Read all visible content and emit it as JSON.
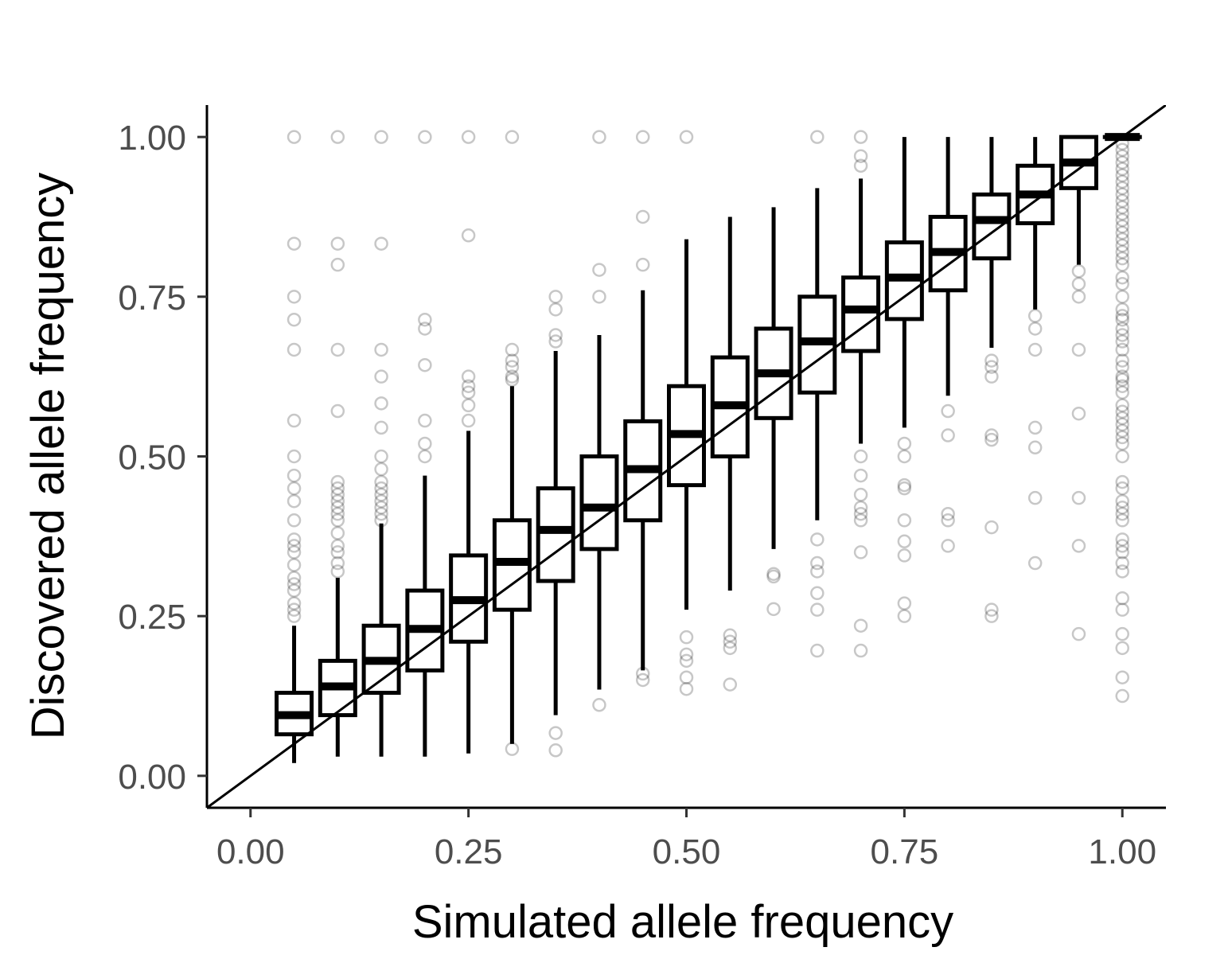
{
  "chart_data": {
    "type": "boxplot",
    "title": "",
    "xlabel": "Simulated allele frequency",
    "ylabel": "Discovered allele frequency",
    "xlim": [
      -0.05,
      1.05
    ],
    "ylim": [
      -0.05,
      1.05
    ],
    "x_ticks": [
      {
        "value": 0.0,
        "label": "0.00"
      },
      {
        "value": 0.25,
        "label": "0.25"
      },
      {
        "value": 0.5,
        "label": "0.50"
      },
      {
        "value": 0.75,
        "label": "0.75"
      },
      {
        "value": 1.0,
        "label": "1.00"
      }
    ],
    "y_ticks": [
      {
        "value": 0.0,
        "label": "0.00"
      },
      {
        "value": 0.25,
        "label": "0.25"
      },
      {
        "value": 0.5,
        "label": "0.50"
      },
      {
        "value": 0.75,
        "label": "0.75"
      },
      {
        "value": 1.0,
        "label": "1.00"
      }
    ],
    "grid": false,
    "legend": "none",
    "reference_line": {
      "slope": 1,
      "intercept": 0
    },
    "colors": {
      "box": "#000000",
      "outlier": "#000000",
      "reference_line": "#000000"
    },
    "boxes": [
      {
        "x": 0.05,
        "lower_whisker": 0.02,
        "q1": 0.065,
        "median": 0.095,
        "q3": 0.13,
        "upper_whisker": 0.235,
        "outliers": [
          0.25,
          0.26,
          0.27,
          0.29,
          0.3,
          0.31,
          0.33,
          0.35,
          0.36,
          0.37,
          0.4,
          0.43,
          0.45,
          0.47,
          0.5,
          0.556,
          0.667,
          0.714,
          0.75,
          0.833,
          1.0
        ]
      },
      {
        "x": 0.1,
        "lower_whisker": 0.03,
        "q1": 0.095,
        "median": 0.14,
        "q3": 0.18,
        "upper_whisker": 0.31,
        "outliers": [
          0.32,
          0.333,
          0.35,
          0.36,
          0.38,
          0.4,
          0.41,
          0.42,
          0.43,
          0.44,
          0.45,
          0.46,
          0.571,
          0.667,
          0.8,
          0.833,
          1.0
        ]
      },
      {
        "x": 0.15,
        "lower_whisker": 0.03,
        "q1": 0.13,
        "median": 0.18,
        "q3": 0.235,
        "upper_whisker": 0.395,
        "outliers": [
          0.4,
          0.41,
          0.42,
          0.43,
          0.44,
          0.45,
          0.46,
          0.48,
          0.5,
          0.545,
          0.583,
          0.625,
          0.667,
          0.833,
          1.0
        ]
      },
      {
        "x": 0.2,
        "lower_whisker": 0.03,
        "q1": 0.165,
        "median": 0.23,
        "q3": 0.29,
        "upper_whisker": 0.47,
        "outliers": [
          0.5,
          0.52,
          0.556,
          0.643,
          0.7,
          0.714,
          1.0
        ]
      },
      {
        "x": 0.25,
        "lower_whisker": 0.035,
        "q1": 0.21,
        "median": 0.275,
        "q3": 0.345,
        "upper_whisker": 0.54,
        "outliers": [
          0.556,
          0.58,
          0.6,
          0.61,
          0.625,
          0.846,
          1.0
        ]
      },
      {
        "x": 0.3,
        "lower_whisker": 0.05,
        "q1": 0.26,
        "median": 0.335,
        "q3": 0.4,
        "upper_whisker": 0.61,
        "outliers": [
          0.042,
          0.62,
          0.625,
          0.64,
          0.65,
          0.667,
          1.0
        ]
      },
      {
        "x": 0.35,
        "lower_whisker": 0.095,
        "q1": 0.305,
        "median": 0.385,
        "q3": 0.45,
        "upper_whisker": 0.665,
        "outliers": [
          0.04,
          0.067,
          0.68,
          0.69,
          0.73,
          0.75
        ]
      },
      {
        "x": 0.4,
        "lower_whisker": 0.135,
        "q1": 0.355,
        "median": 0.42,
        "q3": 0.5,
        "upper_whisker": 0.69,
        "outliers": [
          0.111,
          0.75,
          0.792,
          1.0
        ]
      },
      {
        "x": 0.45,
        "lower_whisker": 0.165,
        "q1": 0.4,
        "median": 0.48,
        "q3": 0.555,
        "upper_whisker": 0.76,
        "outliers": [
          0.15,
          0.16,
          0.8,
          0.875,
          1.0
        ]
      },
      {
        "x": 0.5,
        "lower_whisker": 0.26,
        "q1": 0.455,
        "median": 0.535,
        "q3": 0.61,
        "upper_whisker": 0.84,
        "outliers": [
          0.136,
          0.154,
          0.18,
          0.19,
          0.217,
          1.0
        ]
      },
      {
        "x": 0.55,
        "lower_whisker": 0.29,
        "q1": 0.5,
        "median": 0.58,
        "q3": 0.655,
        "upper_whisker": 0.875,
        "outliers": [
          0.143,
          0.2,
          0.21,
          0.22
        ]
      },
      {
        "x": 0.6,
        "lower_whisker": 0.355,
        "q1": 0.56,
        "median": 0.63,
        "q3": 0.7,
        "upper_whisker": 0.89,
        "outliers": [
          0.261,
          0.312,
          0.316
        ]
      },
      {
        "x": 0.65,
        "lower_whisker": 0.4,
        "q1": 0.6,
        "median": 0.68,
        "q3": 0.75,
        "upper_whisker": 0.92,
        "outliers": [
          0.196,
          0.26,
          0.286,
          0.32,
          0.333,
          0.37,
          1.0
        ]
      },
      {
        "x": 0.7,
        "lower_whisker": 0.52,
        "q1": 0.665,
        "median": 0.73,
        "q3": 0.78,
        "upper_whisker": 0.935,
        "outliers": [
          0.196,
          0.235,
          0.35,
          0.4,
          0.41,
          0.42,
          0.44,
          0.47,
          0.5,
          0.955,
          0.97,
          1.0
        ]
      },
      {
        "x": 0.75,
        "lower_whisker": 0.545,
        "q1": 0.715,
        "median": 0.78,
        "q3": 0.835,
        "upper_whisker": 1.0,
        "outliers": [
          0.25,
          0.27,
          0.345,
          0.367,
          0.4,
          0.45,
          0.455,
          0.5,
          0.52
        ]
      },
      {
        "x": 0.8,
        "lower_whisker": 0.595,
        "q1": 0.76,
        "median": 0.82,
        "q3": 0.875,
        "upper_whisker": 1.0,
        "outliers": [
          0.36,
          0.4,
          0.41,
          0.533,
          0.571
        ]
      },
      {
        "x": 0.85,
        "lower_whisker": 0.67,
        "q1": 0.81,
        "median": 0.87,
        "q3": 0.91,
        "upper_whisker": 1.0,
        "outliers": [
          0.25,
          0.26,
          0.389,
          0.526,
          0.533,
          0.625,
          0.64,
          0.65
        ]
      },
      {
        "x": 0.9,
        "lower_whisker": 0.73,
        "q1": 0.865,
        "median": 0.91,
        "q3": 0.955,
        "upper_whisker": 1.0,
        "outliers": [
          0.333,
          0.435,
          0.514,
          0.545,
          0.667,
          0.7,
          0.72
        ]
      },
      {
        "x": 0.95,
        "lower_whisker": 0.8,
        "q1": 0.92,
        "median": 0.96,
        "q3": 1.0,
        "upper_whisker": 1.0,
        "outliers": [
          0.222,
          0.36,
          0.435,
          0.567,
          0.667,
          0.75,
          0.77,
          0.79
        ]
      },
      {
        "x": 1.0,
        "lower_whisker": 1.0,
        "q1": 1.0,
        "median": 1.0,
        "q3": 1.0,
        "upper_whisker": 1.0,
        "outliers": [
          0.125,
          0.154,
          0.2,
          0.222,
          0.26,
          0.278,
          0.32,
          0.333,
          0.35,
          0.36,
          0.37,
          0.4,
          0.41,
          0.42,
          0.43,
          0.45,
          0.46,
          0.5,
          0.52,
          0.53,
          0.54,
          0.55,
          0.56,
          0.57,
          0.58,
          0.6,
          0.61,
          0.62,
          0.625,
          0.64,
          0.65,
          0.667,
          0.68,
          0.69,
          0.7,
          0.714,
          0.72,
          0.73,
          0.75,
          0.77,
          0.78,
          0.8,
          0.81,
          0.82,
          0.83,
          0.84,
          0.85,
          0.86,
          0.87,
          0.88,
          0.89,
          0.9,
          0.91,
          0.92,
          0.93,
          0.94,
          0.95,
          0.96,
          0.97,
          0.98,
          0.99
        ]
      }
    ]
  }
}
